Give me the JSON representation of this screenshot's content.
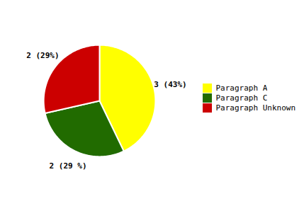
{
  "chart_data": {
    "type": "pie",
    "categories": [
      "Paragraph A",
      "Paragraph C",
      "Paragraph Unknown"
    ],
    "values": [
      3,
      2,
      2
    ],
    "value_labels": [
      "3 (43%)",
      "2 (29 %)",
      "2 (29%)"
    ],
    "colors": [
      "#FFFF00",
      "#216B00",
      "#CC0000"
    ],
    "data_labels": true,
    "legend": "right"
  }
}
